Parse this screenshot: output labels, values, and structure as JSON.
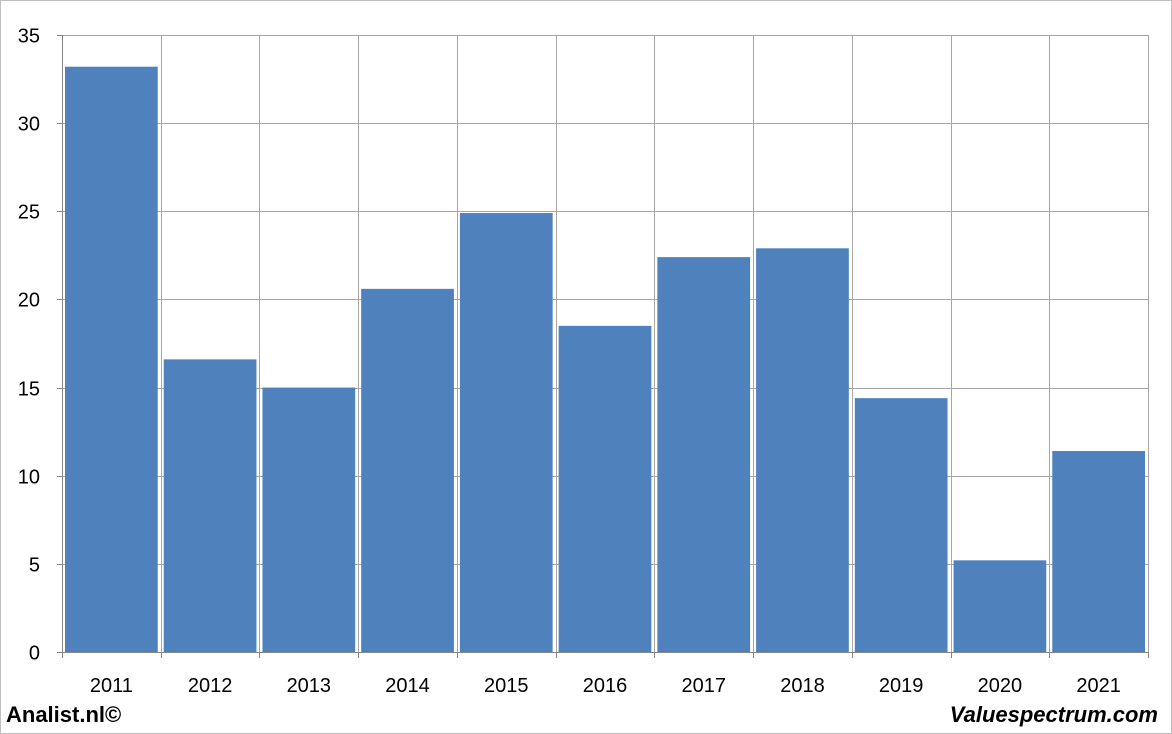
{
  "chart_data": {
    "type": "bar",
    "categories": [
      "2011",
      "2012",
      "2013",
      "2014",
      "2015",
      "2016",
      "2017",
      "2018",
      "2019",
      "2020",
      "2021"
    ],
    "values": [
      33.2,
      16.6,
      15.0,
      20.6,
      24.9,
      18.5,
      22.4,
      22.9,
      14.4,
      5.2,
      11.4
    ],
    "title": "",
    "xlabel": "",
    "ylabel": "",
    "ylim": [
      0,
      35
    ],
    "yticks": [
      "0",
      "5",
      "10",
      "15",
      "20",
      "25",
      "30",
      "35"
    ],
    "grid": true,
    "bar_color": "#4f81bd"
  },
  "footer": {
    "left": "Analist.nl©",
    "right": "Valuespectrum.com"
  }
}
